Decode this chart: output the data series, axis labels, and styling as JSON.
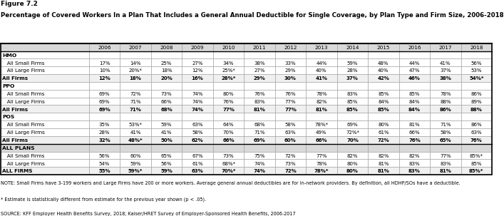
{
  "figure_label": "Figure 7.2",
  "title": "Percentage of Covered Workers In a Plan That Includes a General Annual Deductible for Single Coverage, by Plan Type and Firm Size, 2006-2018",
  "years": [
    "2006",
    "2007",
    "2008",
    "2009",
    "2010",
    "2011",
    "2012",
    "2013",
    "2014",
    "2015",
    "2016",
    "2017",
    "2018"
  ],
  "sections": [
    {
      "name": "HMO",
      "bold_name": false,
      "rows": [
        {
          "label": "   All Small Firms",
          "bold": false,
          "values": [
            "17%",
            "14%",
            "25%",
            "27%",
            "34%",
            "38%",
            "33%",
            "44%",
            "59%",
            "48%",
            "44%",
            "41%",
            "56%"
          ]
        },
        {
          "label": "   All Large Firms",
          "bold": false,
          "values": [
            "10%",
            "20%*",
            "18%",
            "12%",
            "25%*",
            "27%",
            "29%",
            "40%",
            "28%",
            "40%",
            "47%",
            "37%",
            "53%"
          ]
        },
        {
          "label": "All Firms",
          "bold": true,
          "values": [
            "12%",
            "18%",
            "20%",
            "16%",
            "28%*",
            "29%",
            "30%",
            "41%",
            "37%",
            "42%",
            "46%",
            "38%",
            "54%*"
          ]
        }
      ]
    },
    {
      "name": "PPO",
      "bold_name": false,
      "rows": [
        {
          "label": "   All Small Firms",
          "bold": false,
          "values": [
            "69%",
            "72%",
            "73%",
            "74%",
            "80%",
            "76%",
            "76%",
            "78%",
            "83%",
            "85%",
            "85%",
            "78%",
            "86%"
          ]
        },
        {
          "label": "   All Large Firms",
          "bold": false,
          "values": [
            "69%",
            "71%",
            "66%",
            "74%",
            "76%",
            "83%",
            "77%",
            "82%",
            "85%",
            "84%",
            "84%",
            "88%",
            "89%"
          ]
        },
        {
          "label": "All Firms",
          "bold": true,
          "values": [
            "69%",
            "71%",
            "68%",
            "74%",
            "77%",
            "81%",
            "77%",
            "81%",
            "85%",
            "85%",
            "84%",
            "86%",
            "88%"
          ]
        }
      ]
    },
    {
      "name": "POS",
      "bold_name": false,
      "rows": [
        {
          "label": "   All Small Firms",
          "bold": false,
          "values": [
            "35%",
            "53%*",
            "59%",
            "63%",
            "64%",
            "68%",
            "58%",
            "78%*",
            "69%",
            "80%",
            "81%",
            "71%",
            "86%"
          ]
        },
        {
          "label": "   All Large Firms",
          "bold": false,
          "values": [
            "28%",
            "41%",
            "41%",
            "58%",
            "70%",
            "71%",
            "63%",
            "49%",
            "72%*",
            "61%",
            "66%",
            "58%",
            "63%"
          ]
        },
        {
          "label": "All Firms",
          "bold": true,
          "values": [
            "32%",
            "48%*",
            "50%",
            "62%",
            "66%",
            "69%",
            "60%",
            "66%",
            "70%",
            "72%",
            "76%",
            "65%",
            "76%"
          ]
        }
      ]
    },
    {
      "name": "ALL PLANS",
      "bold_name": true,
      "rows": [
        {
          "label": "   All Small Firms",
          "bold": false,
          "values": [
            "56%",
            "60%",
            "65%",
            "67%",
            "73%",
            "75%",
            "72%",
            "77%",
            "82%",
            "82%",
            "82%",
            "77%",
            "85%*"
          ]
        },
        {
          "label": "   All Large Firms",
          "bold": false,
          "values": [
            "54%",
            "59%",
            "56%",
            "61%",
            "68%*",
            "74%",
            "73%",
            "78%",
            "80%",
            "81%",
            "83%",
            "83%",
            "85%"
          ]
        },
        {
          "label": "ALL FIRMS",
          "bold": true,
          "values": [
            "55%",
            "59%*",
            "59%",
            "63%",
            "70%*",
            "74%",
            "72%",
            "78%*",
            "80%",
            "81%",
            "83%",
            "81%",
            "85%*"
          ]
        }
      ]
    }
  ],
  "note": "NOTE: Small Firms have 3-199 workers and Large Firms have 200 or more workers. Average general annual deductibles are for in-network providers. By definition, all HDHP/SOs have a deductible.",
  "asterisk_note": "* Estimate is statistically different from estimate for the previous year shown (p < .05).",
  "source": "SOURCE: KFF Employer Health Benefits Survey, 2018; Kaiser/HRET Survey of Employer-Sponsored Health Benefits, 2006-2017",
  "header_bg": "#d9d9d9",
  "all_plans_header_bg": "#d9d9d9",
  "bold_row_bg": "#f0f0f0",
  "normal_row_bg": "#ffffff",
  "border_color": "#999999",
  "heavy_border_color": "#000000"
}
